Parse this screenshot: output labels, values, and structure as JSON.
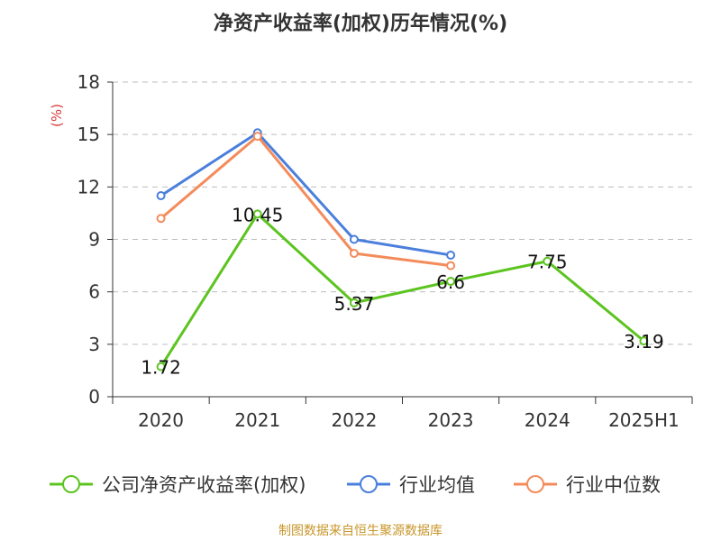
{
  "chart_data": {
    "type": "line",
    "title": "净资产收益率(加权)历年情况(%)",
    "ylabel": "(%)",
    "xlabel": "",
    "categories": [
      "2020",
      "2021",
      "2022",
      "2023",
      "2024",
      "2025H1"
    ],
    "ylim": [
      0,
      18
    ],
    "yticks": [
      0,
      3,
      6,
      9,
      12,
      15,
      18
    ],
    "grid": true,
    "legend_position": "bottom",
    "series": [
      {
        "name": "公司净资产收益率(加权)",
        "color": "#5cc41f",
        "values": [
          1.72,
          10.45,
          5.37,
          6.6,
          7.75,
          3.19
        ],
        "labels": [
          "1.72",
          "10.45",
          "5.37",
          "6.6",
          "7.75",
          "3.19"
        ]
      },
      {
        "name": "行业均值",
        "color": "#4a7fdc",
        "values": [
          11.5,
          15.1,
          9.0,
          8.1,
          null,
          null
        ]
      },
      {
        "name": "行业中位数",
        "color": "#f48b5a",
        "values": [
          10.2,
          14.9,
          8.2,
          7.5,
          null,
          null
        ]
      }
    ]
  },
  "source": "制图数据来自恒生聚源数据库"
}
